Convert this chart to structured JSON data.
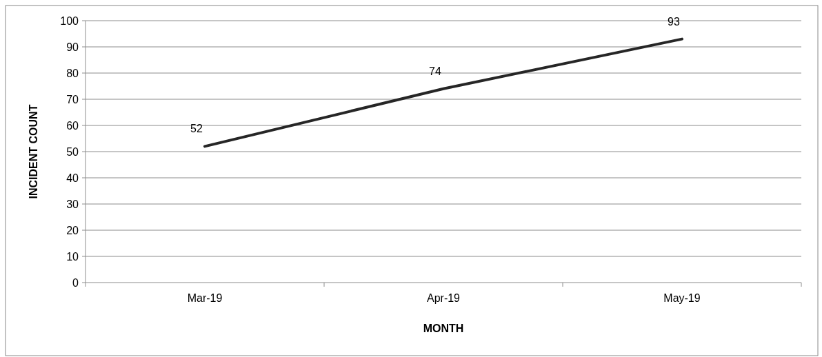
{
  "chart_data": {
    "type": "line",
    "xlabel": "MONTH",
    "ylabel": "INCIDENT COUNT",
    "categories": [
      "Mar-19",
      "Apr-19",
      "May-19"
    ],
    "series": [
      {
        "color": "#262626",
        "values": [
          52,
          74,
          93
        ]
      }
    ],
    "ylim": [
      0,
      100
    ],
    "yticks": [
      0,
      10,
      20,
      30,
      40,
      50,
      60,
      70,
      80,
      90,
      100
    ],
    "grid": "y",
    "data_labels": true,
    "marker": "none",
    "line_style": "solid"
  }
}
